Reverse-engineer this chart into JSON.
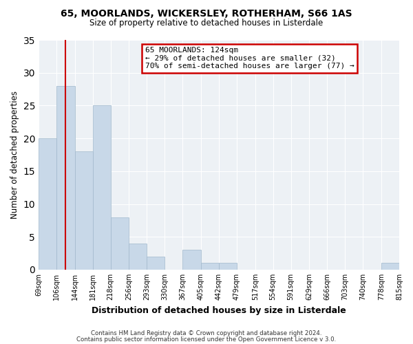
{
  "title": "65, MOORLANDS, WICKERSLEY, ROTHERHAM, S66 1AS",
  "subtitle": "Size of property relative to detached houses in Listerdale",
  "xlabel": "Distribution of detached houses by size in Listerdale",
  "ylabel": "Number of detached properties",
  "bin_edges": [
    69,
    106,
    144,
    181,
    218,
    256,
    293,
    330,
    367,
    405,
    442,
    479,
    517,
    554,
    591,
    629,
    666,
    703,
    740,
    778,
    815
  ],
  "bin_labels": [
    "69sqm",
    "106sqm",
    "144sqm",
    "181sqm",
    "218sqm",
    "256sqm",
    "293sqm",
    "330sqm",
    "367sqm",
    "405sqm",
    "442sqm",
    "479sqm",
    "517sqm",
    "554sqm",
    "591sqm",
    "629sqm",
    "666sqm",
    "703sqm",
    "740sqm",
    "778sqm",
    "815sqm"
  ],
  "counts": [
    20,
    28,
    18,
    25,
    8,
    4,
    2,
    0,
    3,
    1,
    1,
    0,
    0,
    0,
    0,
    0,
    0,
    0,
    0,
    1,
    0
  ],
  "bar_color": "#c8d8e8",
  "bar_edge_color": "#a0b8cc",
  "vline_x": 124,
  "vline_color": "#cc0000",
  "annotation_line1": "65 MOORLANDS: 124sqm",
  "annotation_line2": "← 29% of detached houses are smaller (32)",
  "annotation_line3": "70% of semi-detached houses are larger (77) →",
  "annotation_box_color": "#cc0000",
  "ylim": [
    0,
    35
  ],
  "yticks": [
    0,
    5,
    10,
    15,
    20,
    25,
    30,
    35
  ],
  "background_color": "#edf1f5",
  "footer1": "Contains HM Land Registry data © Crown copyright and database right 2024.",
  "footer2": "Contains public sector information licensed under the Open Government Licence v 3.0."
}
